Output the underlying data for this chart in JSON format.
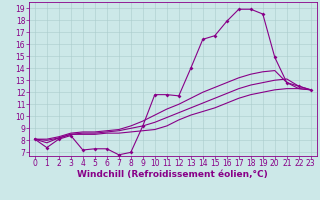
{
  "xlabel": "Windchill (Refroidissement éolien,°C)",
  "bg_color": "#cce8e8",
  "line_color": "#880088",
  "grid_color": "#aacccc",
  "xmin": -0.5,
  "xmax": 23.5,
  "ymin": 6.7,
  "ymax": 19.5,
  "xticks": [
    0,
    1,
    2,
    3,
    4,
    5,
    6,
    7,
    8,
    9,
    10,
    11,
    12,
    13,
    14,
    15,
    16,
    17,
    18,
    19,
    20,
    21,
    22,
    23
  ],
  "yticks": [
    7,
    8,
    9,
    10,
    11,
    12,
    13,
    14,
    15,
    16,
    17,
    18,
    19
  ],
  "line1_x": [
    0,
    1,
    2,
    3,
    4,
    5,
    6,
    7,
    8,
    9,
    10,
    11,
    12,
    13,
    14,
    15,
    16,
    17,
    18,
    19,
    20,
    21,
    22,
    23
  ],
  "line1_y": [
    8.1,
    7.4,
    8.1,
    8.4,
    7.2,
    7.3,
    7.3,
    6.8,
    7.0,
    9.2,
    11.8,
    11.8,
    11.7,
    14.0,
    16.4,
    16.7,
    17.9,
    18.9,
    18.9,
    18.5,
    14.9,
    12.8,
    12.5,
    12.2
  ],
  "line2_x": [
    0,
    1,
    2,
    3,
    4,
    5,
    6,
    7,
    8,
    9,
    10,
    11,
    12,
    13,
    14,
    15,
    16,
    17,
    18,
    19,
    20,
    21,
    22,
    23
  ],
  "line2_y": [
    8.1,
    7.8,
    8.2,
    8.5,
    8.5,
    8.5,
    8.6,
    8.6,
    8.7,
    8.8,
    8.9,
    9.2,
    9.7,
    10.1,
    10.4,
    10.7,
    11.1,
    11.5,
    11.8,
    12.0,
    12.2,
    12.3,
    12.3,
    12.2
  ],
  "line3_x": [
    0,
    1,
    2,
    3,
    4,
    5,
    6,
    7,
    8,
    9,
    10,
    11,
    12,
    13,
    14,
    15,
    16,
    17,
    18,
    19,
    20,
    21,
    22,
    23
  ],
  "line3_y": [
    8.1,
    8.0,
    8.2,
    8.5,
    8.6,
    8.6,
    8.7,
    8.8,
    9.0,
    9.2,
    9.5,
    9.9,
    10.3,
    10.7,
    11.1,
    11.5,
    11.9,
    12.3,
    12.6,
    12.8,
    13.0,
    13.1,
    12.5,
    12.2
  ],
  "line4_x": [
    0,
    1,
    2,
    3,
    4,
    5,
    6,
    7,
    8,
    9,
    10,
    11,
    12,
    13,
    14,
    15,
    16,
    17,
    18,
    19,
    20,
    21,
    22,
    23
  ],
  "line4_y": [
    8.1,
    8.1,
    8.3,
    8.6,
    8.7,
    8.7,
    8.8,
    8.9,
    9.2,
    9.6,
    10.1,
    10.6,
    11.0,
    11.5,
    12.0,
    12.4,
    12.8,
    13.2,
    13.5,
    13.7,
    13.8,
    12.8,
    12.3,
    12.2
  ],
  "tick_fontsize": 5.5,
  "xlabel_fontsize": 6.5
}
